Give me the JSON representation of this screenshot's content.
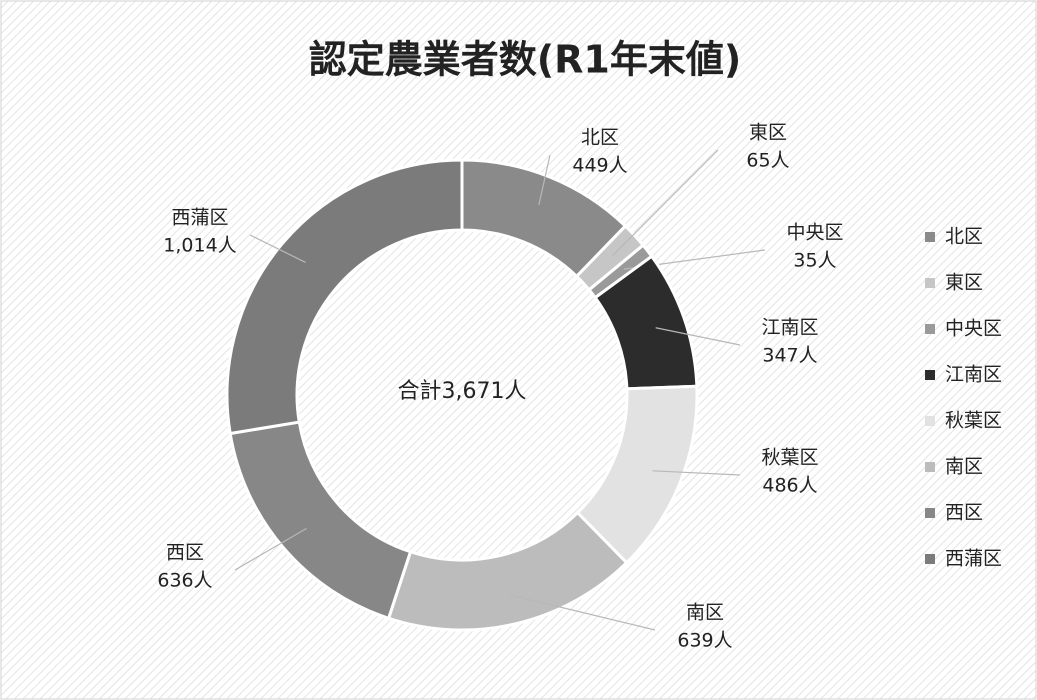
{
  "chart_data": {
    "type": "donut",
    "title": "認定農業者数(R1年末値)",
    "categories": [
      "北区",
      "東区",
      "中央区",
      "江南区",
      "秋葉区",
      "南区",
      "西区",
      "西蒲区"
    ],
    "values": [
      449,
      65,
      35,
      347,
      486,
      639,
      636,
      1014
    ],
    "value_labels": [
      "449人",
      "65人",
      "35人",
      "347人",
      "486人",
      "639人",
      "636人",
      "1,014人"
    ],
    "colors": [
      "#8a8a8a",
      "#c6c6c6",
      "#9a9a9a",
      "#2c2c2c",
      "#e2e2e2",
      "#bcbcbc",
      "#878787",
      "#7b7b7b"
    ],
    "center_label": "合計3,671人",
    "legend": "right"
  }
}
